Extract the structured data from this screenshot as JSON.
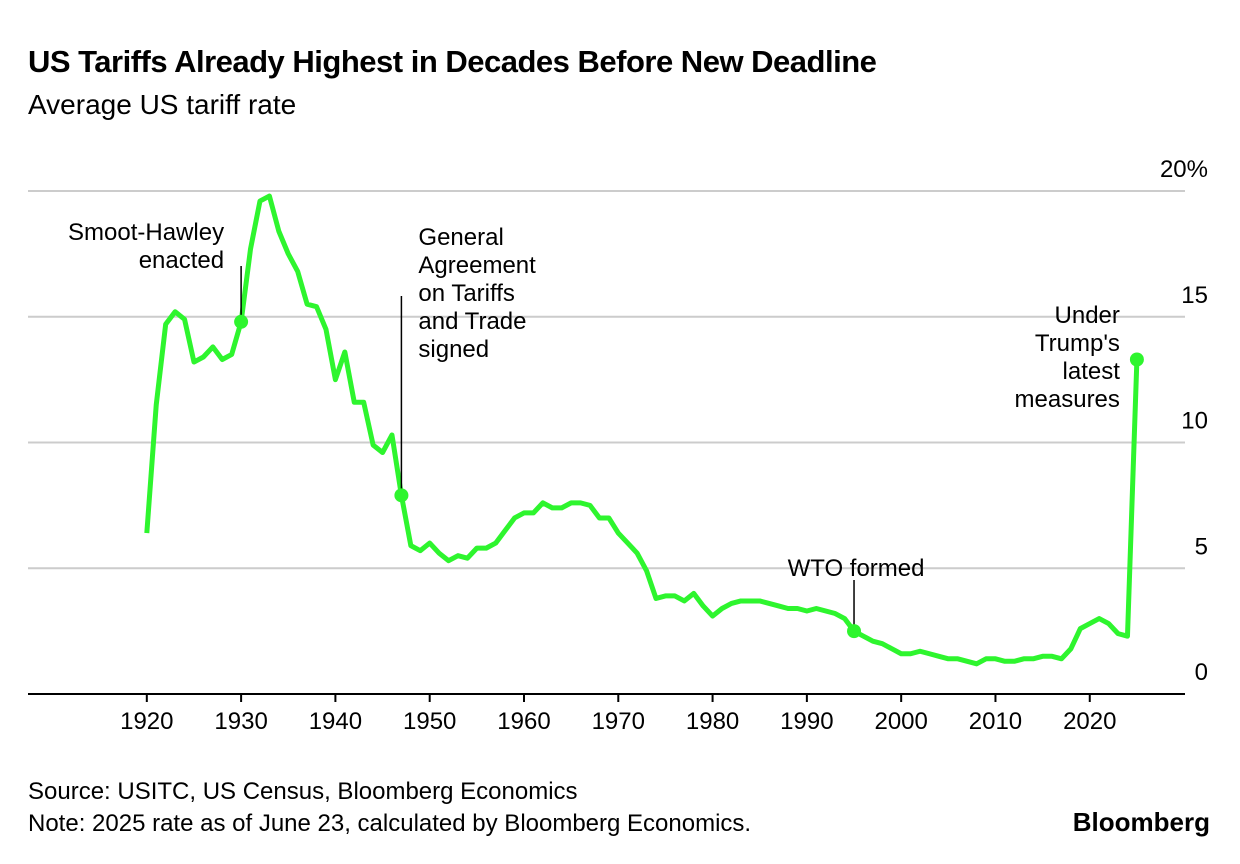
{
  "chart_data": {
    "type": "line",
    "title": "US Tariffs Already Highest in Decades Before New Deadline",
    "subtitle": "Average US tariff rate",
    "x": [
      1920,
      1921,
      1922,
      1923,
      1924,
      1925,
      1926,
      1927,
      1928,
      1929,
      1930,
      1931,
      1932,
      1933,
      1934,
      1935,
      1936,
      1937,
      1938,
      1939,
      1940,
      1941,
      1942,
      1943,
      1944,
      1945,
      1946,
      1947,
      1948,
      1949,
      1950,
      1951,
      1952,
      1953,
      1954,
      1955,
      1956,
      1957,
      1958,
      1959,
      1960,
      1961,
      1962,
      1963,
      1964,
      1965,
      1966,
      1967,
      1968,
      1969,
      1970,
      1971,
      1972,
      1973,
      1974,
      1975,
      1976,
      1977,
      1978,
      1979,
      1980,
      1981,
      1982,
      1983,
      1984,
      1985,
      1986,
      1987,
      1988,
      1989,
      1990,
      1991,
      1992,
      1993,
      1994,
      1995,
      1996,
      1997,
      1998,
      1999,
      2000,
      2001,
      2002,
      2003,
      2004,
      2005,
      2006,
      2007,
      2008,
      2009,
      2010,
      2011,
      2012,
      2013,
      2014,
      2015,
      2016,
      2017,
      2018,
      2019,
      2020,
      2021,
      2022,
      2023,
      2024,
      2025
    ],
    "series": [
      {
        "name": "Average US tariff rate",
        "color": "#2ef52e",
        "values": [
          6.4,
          11.5,
          14.7,
          15.2,
          14.9,
          13.2,
          13.4,
          13.8,
          13.3,
          13.5,
          14.8,
          17.7,
          19.6,
          19.8,
          18.4,
          17.5,
          16.8,
          15.5,
          15.4,
          14.5,
          12.5,
          13.6,
          11.6,
          11.6,
          9.9,
          9.6,
          10.3,
          7.9,
          5.9,
          5.7,
          6.0,
          5.6,
          5.3,
          5.5,
          5.4,
          5.8,
          5.8,
          6.0,
          6.5,
          7.0,
          7.2,
          7.2,
          7.6,
          7.4,
          7.4,
          7.6,
          7.6,
          7.5,
          7.0,
          7.0,
          6.4,
          6.0,
          5.6,
          4.9,
          3.8,
          3.9,
          3.9,
          3.7,
          4.0,
          3.5,
          3.1,
          3.4,
          3.6,
          3.7,
          3.7,
          3.7,
          3.6,
          3.5,
          3.4,
          3.4,
          3.3,
          3.4,
          3.3,
          3.2,
          3.0,
          2.5,
          2.3,
          2.1,
          2.0,
          1.8,
          1.6,
          1.6,
          1.7,
          1.6,
          1.5,
          1.4,
          1.4,
          1.3,
          1.2,
          1.4,
          1.4,
          1.3,
          1.3,
          1.4,
          1.4,
          1.5,
          1.5,
          1.4,
          1.8,
          2.6,
          2.8,
          3.0,
          2.8,
          2.4,
          2.3,
          13.3
        ]
      }
    ],
    "xlim": [
      1907.4,
      2030.1
    ],
    "xticks": [
      1920,
      1930,
      1940,
      1950,
      1960,
      1970,
      1980,
      1990,
      2000,
      2010,
      2020
    ],
    "ylim": [
      0,
      20
    ],
    "yticks": [
      0,
      5,
      10,
      15,
      {
        "value": 20,
        "label": "20%"
      }
    ],
    "grid": true,
    "annotations": [
      {
        "x": 1930,
        "text": [
          "Smoot-Hawley",
          "enacted"
        ]
      },
      {
        "x": 1947,
        "text": [
          "General",
          "Agreement",
          "on Tariffs",
          "and Trade",
          "signed"
        ]
      },
      {
        "x": 1995,
        "text": [
          "WTO formed"
        ]
      },
      {
        "x": 2025,
        "text": [
          "Under",
          "Trump's",
          "latest",
          "measures"
        ]
      }
    ],
    "source": "Source: USITC, US Census, Bloomberg Economics",
    "note": "Note: 2025 rate as of June 23, calculated by Bloomberg Economics.",
    "brand": "Bloomberg"
  }
}
